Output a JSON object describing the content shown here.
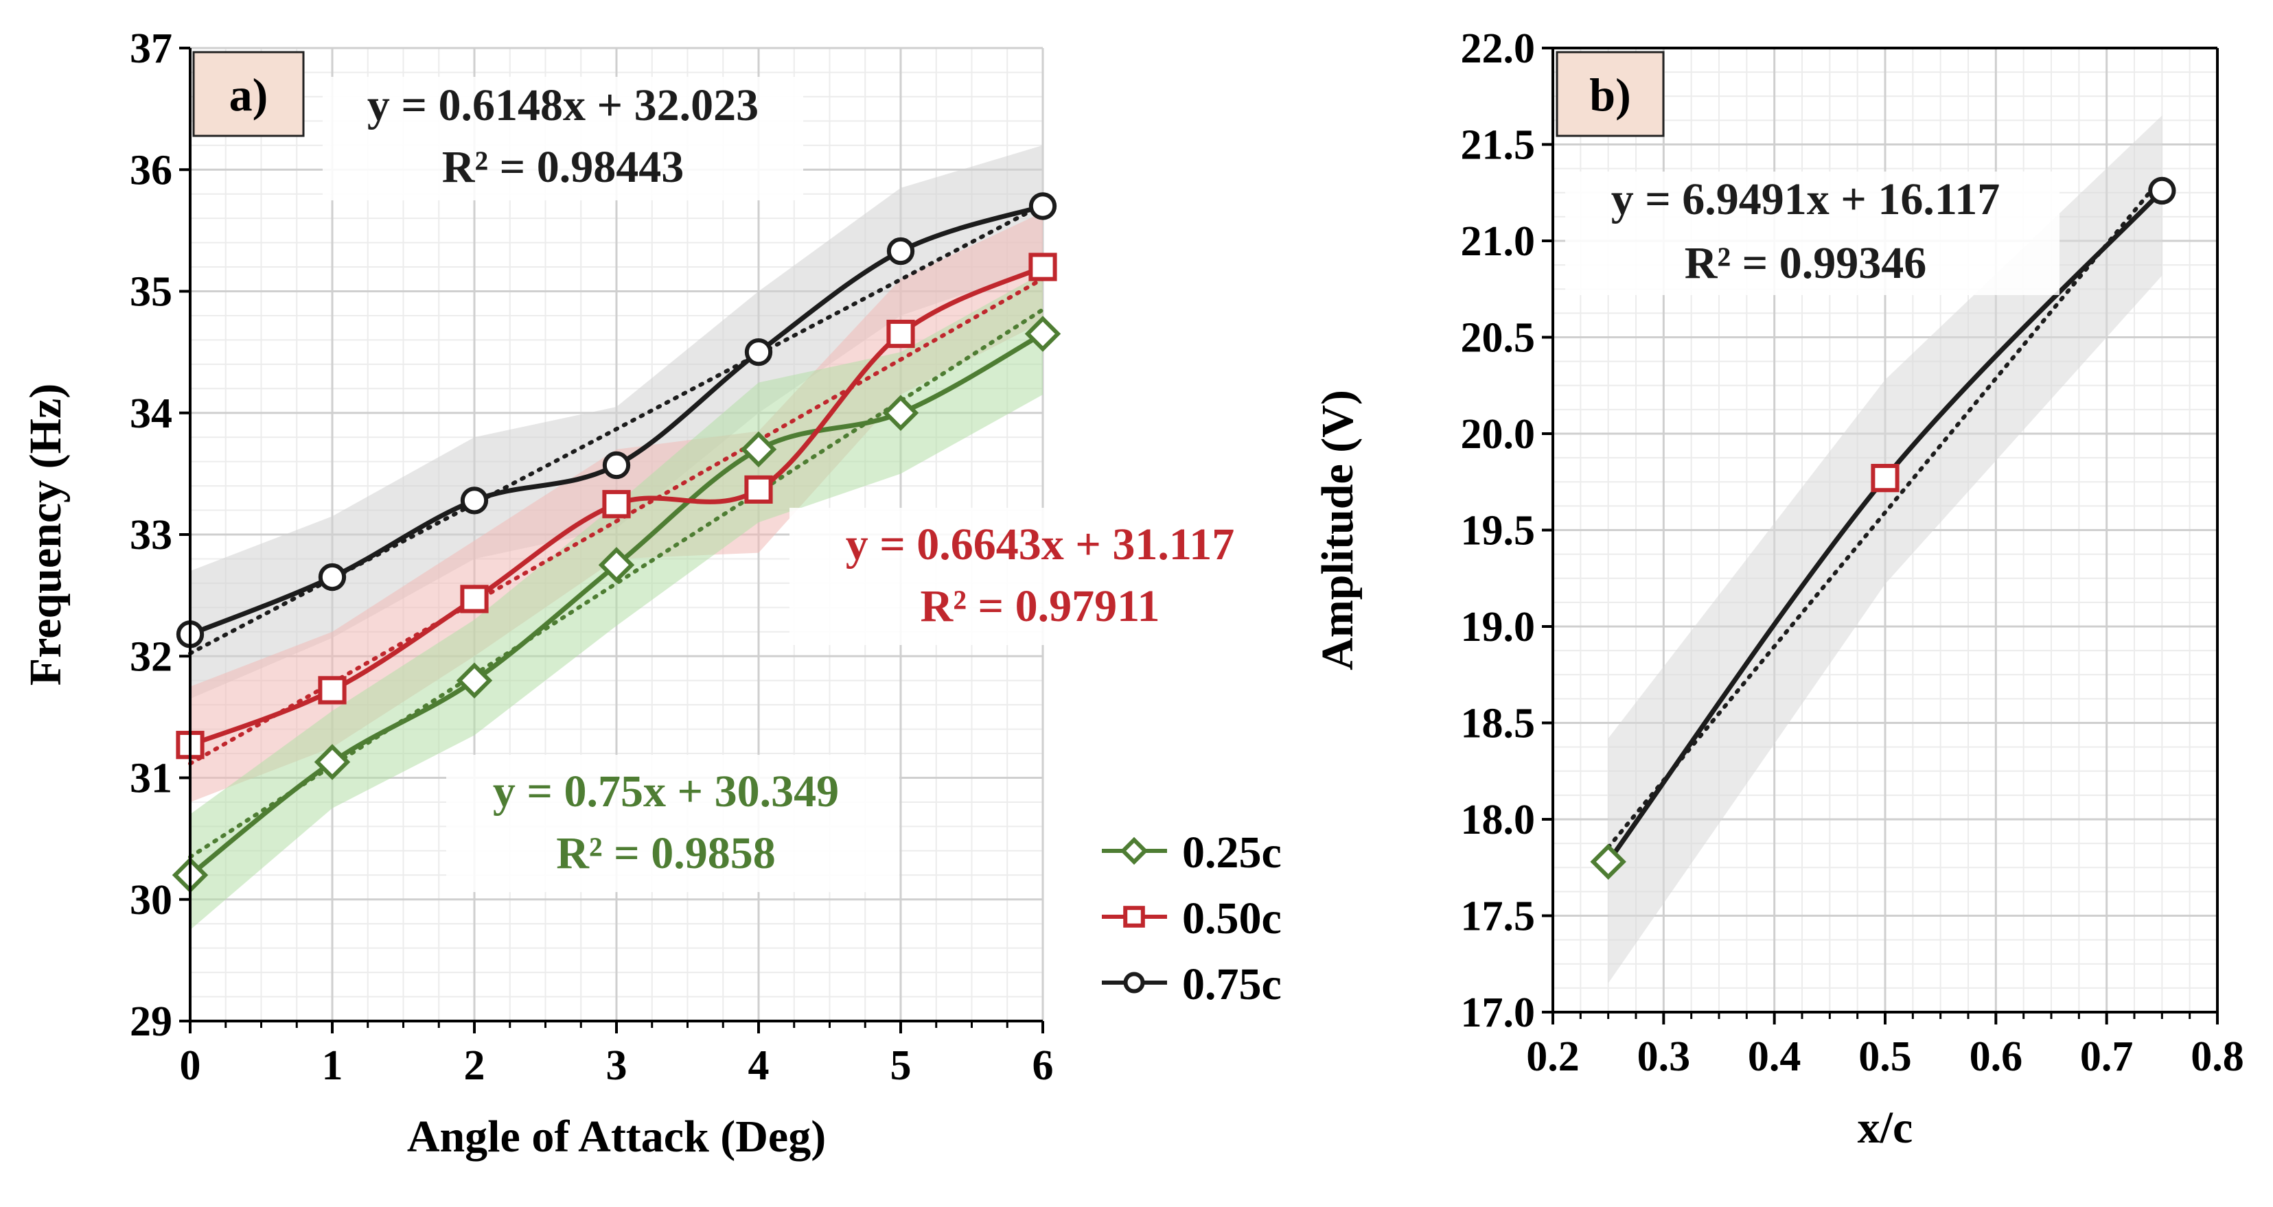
{
  "chart_data": [
    {
      "panel_label": "a)",
      "type": "line",
      "xlabel": "Angle of Attack (Deg)",
      "ylabel": "Frequency (Hz)",
      "xlim": [
        0,
        6
      ],
      "ylim": [
        29,
        37
      ],
      "x_ticks": [
        "0",
        "1",
        "2",
        "3",
        "4",
        "5",
        "6"
      ],
      "y_ticks": [
        "29",
        "30",
        "31",
        "32",
        "33",
        "34",
        "35",
        "36",
        "37"
      ],
      "grid": true,
      "legend_position": "bottom-right outside",
      "x": [
        0,
        1,
        2,
        3,
        4,
        5,
        6
      ],
      "series": [
        {
          "name": "0.25c",
          "color": "#4e7d33",
          "band_color": "#b5dfa8",
          "marker": "diamond",
          "values": [
            30.2,
            31.13,
            31.8,
            32.75,
            33.7,
            34.0,
            34.65
          ],
          "band_upper": [
            30.7,
            31.55,
            32.3,
            33.25,
            34.25,
            34.5,
            35.15
          ],
          "band_lower": [
            29.75,
            30.75,
            31.35,
            32.25,
            33.1,
            33.5,
            34.15
          ],
          "fit": {
            "slope": 0.75,
            "intercept": 30.349,
            "equation": "y = 0.75x + 30.349",
            "r2": "R² = 0.9858"
          }
        },
        {
          "name": "0.50c",
          "color": "#c0272d",
          "band_color": "#f0b9b6",
          "marker": "square",
          "values": [
            31.27,
            31.72,
            32.47,
            33.25,
            33.37,
            34.65,
            35.2
          ],
          "band_upper": [
            31.75,
            32.2,
            32.95,
            33.7,
            33.85,
            35.1,
            35.65
          ],
          "band_lower": [
            30.8,
            31.25,
            32.0,
            32.8,
            32.85,
            34.15,
            34.75
          ],
          "fit": {
            "slope": 0.6643,
            "intercept": 31.117,
            "equation": "y = 0.6643x + 31.117",
            "r2": "R² = 0.97911"
          }
        },
        {
          "name": "0.75c",
          "color": "#1c1c1c",
          "band_color": "#d2d2d2",
          "marker": "circle",
          "values": [
            32.18,
            32.65,
            33.28,
            33.57,
            34.5,
            35.33,
            35.7
          ],
          "band_upper": [
            32.7,
            33.15,
            33.8,
            34.05,
            35.0,
            35.85,
            36.2
          ],
          "band_lower": [
            31.65,
            32.15,
            32.8,
            33.05,
            34.0,
            34.8,
            35.2
          ],
          "fit": {
            "slope": 0.6148,
            "intercept": 32.023,
            "equation": "y = 0.6148x + 32.023",
            "r2": "R² = 0.98443"
          }
        }
      ]
    },
    {
      "panel_label": "b)",
      "type": "line",
      "xlabel": "x/c",
      "ylabel": "Amplitude (V)",
      "xlim": [
        0.2,
        0.8
      ],
      "ylim": [
        17.0,
        22.0
      ],
      "x_ticks": [
        "0.2",
        "0.3",
        "0.4",
        "0.5",
        "0.6",
        "0.7",
        "0.8"
      ],
      "y_ticks": [
        "17.0",
        "17.5",
        "18.0",
        "18.5",
        "19.0",
        "19.5",
        "20.0",
        "20.5",
        "21.0",
        "21.5",
        "22.0"
      ],
      "grid": true,
      "x": [
        0.25,
        0.5,
        0.75
      ],
      "series": [
        {
          "name": "Amplitude",
          "color": "#1c1c1c",
          "band_color": "#d9d9d9",
          "marker_colors": [
            "#4e7d33",
            "#c0272d",
            "#1c1c1c"
          ],
          "marker_shapes": [
            "diamond",
            "square",
            "circle"
          ],
          "values": [
            17.78,
            19.77,
            21.26
          ],
          "band_upper": [
            18.42,
            20.28,
            21.65
          ],
          "band_lower": [
            17.15,
            19.22,
            20.82
          ],
          "fit": {
            "slope": 6.9491,
            "intercept": 16.117,
            "equation": "y = 6.9491x + 16.117",
            "r2": "R² = 0.99346"
          }
        }
      ]
    }
  ]
}
